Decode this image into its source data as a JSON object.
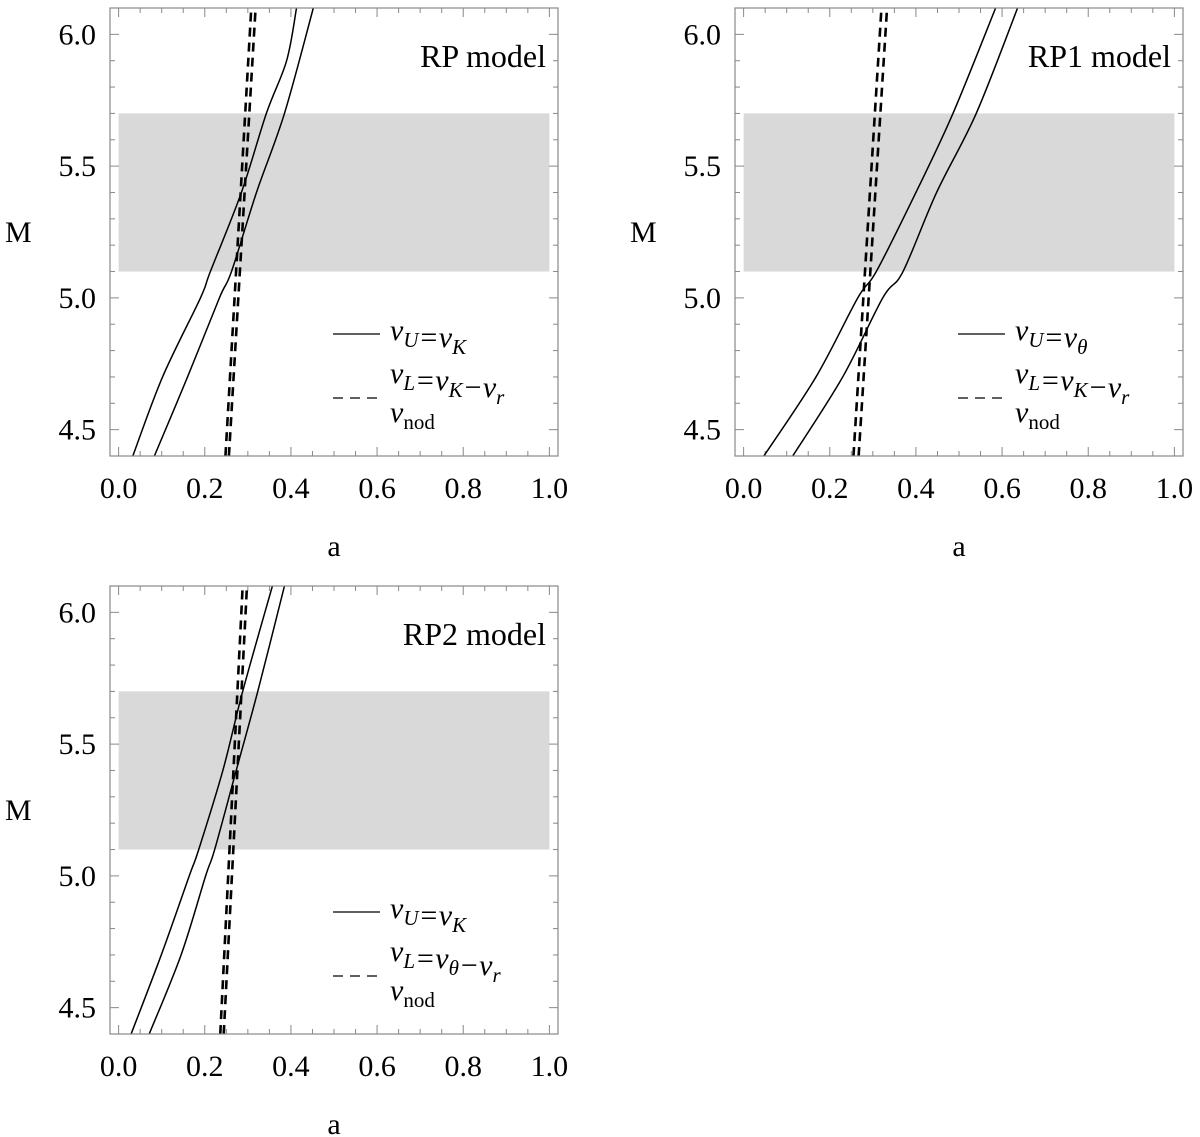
{
  "chart_data": [
    {
      "type": "line",
      "title": "RP model",
      "xlabel": "a",
      "ylabel": "M",
      "xlim": [
        -0.02,
        1.02
      ],
      "ylim": [
        4.4,
        6.1
      ],
      "xticks": [
        "0.0",
        "0.2",
        "0.4",
        "0.6",
        "0.8",
        "1.0"
      ],
      "yticks": [
        "4.5",
        "5.0",
        "5.5",
        "6.0"
      ],
      "band": {
        "x": [
          0,
          1
        ],
        "y": [
          5.1,
          5.7
        ],
        "color": "#d9d9d9"
      },
      "legend": [
        {
          "style": "solid",
          "label": [
            {
              "t": "ν"
            },
            {
              "t": "U",
              "sub": true
            },
            {
              "t": "=ν"
            },
            {
              "t": "K",
              "sub": true
            }
          ]
        },
        {
          "style": "none",
          "label": [
            {
              "t": "ν"
            },
            {
              "t": "L",
              "sub": true
            },
            {
              "t": "=ν"
            },
            {
              "t": "K",
              "sub": true
            },
            {
              "t": "−ν"
            },
            {
              "t": "r",
              "sub": true
            }
          ]
        },
        {
          "style": "dashed",
          "label": [
            {
              "t": "ν"
            },
            {
              "t": "nod",
              "sub": true,
              "upright": true
            }
          ]
        }
      ],
      "series": [
        {
          "style": "solid",
          "points": [
            [
              0.033,
              4.4
            ],
            [
              0.102,
              4.7
            ],
            [
              0.19,
              5.0
            ],
            [
              0.213,
              5.1
            ],
            [
              0.285,
              5.4
            ],
            [
              0.343,
              5.7
            ],
            [
              0.39,
              5.9
            ],
            [
              0.413,
              6.1
            ]
          ]
        },
        {
          "style": "solid",
          "points": [
            [
              0.083,
              4.4
            ],
            [
              0.16,
              4.7
            ],
            [
              0.234,
              5.0
            ],
            [
              0.262,
              5.1
            ],
            [
              0.32,
              5.4
            ],
            [
              0.385,
              5.7
            ],
            [
              0.452,
              6.1
            ]
          ]
        },
        {
          "style": "dashed",
          "points": [
            [
              0.248,
              4.4
            ],
            [
              0.308,
              6.1
            ]
          ]
        },
        {
          "style": "dashed",
          "points": [
            [
              0.256,
              4.4
            ],
            [
              0.318,
              6.1
            ]
          ]
        }
      ]
    },
    {
      "type": "line",
      "title": "RP1 model",
      "xlabel": "a",
      "ylabel": "M",
      "xlim": [
        -0.02,
        1.02
      ],
      "ylim": [
        4.4,
        6.1
      ],
      "xticks": [
        "0.0",
        "0.2",
        "0.4",
        "0.6",
        "0.8",
        "1.0"
      ],
      "yticks": [
        "4.5",
        "5.0",
        "5.5",
        "6.0"
      ],
      "band": {
        "x": [
          0,
          1
        ],
        "y": [
          5.1,
          5.7
        ],
        "color": "#d9d9d9"
      },
      "legend": [
        {
          "style": "solid",
          "label": [
            {
              "t": "ν"
            },
            {
              "t": "U",
              "sub": true
            },
            {
              "t": "=ν"
            },
            {
              "t": "θ",
              "sub": true
            }
          ]
        },
        {
          "style": "none",
          "label": [
            {
              "t": "ν"
            },
            {
              "t": "L",
              "sub": true
            },
            {
              "t": "=ν"
            },
            {
              "t": "K",
              "sub": true
            },
            {
              "t": "−ν"
            },
            {
              "t": "r",
              "sub": true
            }
          ]
        },
        {
          "style": "dashed",
          "label": [
            {
              "t": "ν"
            },
            {
              "t": "nod",
              "sub": true,
              "upright": true
            }
          ]
        }
      ],
      "series": [
        {
          "style": "solid",
          "points": [
            [
              0.047,
              4.4
            ],
            [
              0.168,
              4.7
            ],
            [
              0.265,
              5.0
            ],
            [
              0.308,
              5.1
            ],
            [
              0.4,
              5.4
            ],
            [
              0.486,
              5.7
            ],
            [
              0.585,
              6.1
            ]
          ]
        },
        {
          "style": "solid",
          "points": [
            [
              0.114,
              4.4
            ],
            [
              0.23,
              4.7
            ],
            [
              0.323,
              5.0
            ],
            [
              0.37,
              5.1
            ],
            [
              0.448,
              5.4
            ],
            [
              0.54,
              5.7
            ],
            [
              0.636,
              6.1
            ]
          ]
        },
        {
          "style": "dashed",
          "points": [
            [
              0.255,
              4.4
            ],
            [
              0.32,
              6.1
            ]
          ]
        },
        {
          "style": "dashed",
          "points": [
            [
              0.267,
              4.4
            ],
            [
              0.333,
              6.1
            ]
          ]
        }
      ]
    },
    {
      "type": "line",
      "title": "RP2 model",
      "xlabel": "a",
      "ylabel": "M",
      "xlim": [
        -0.02,
        1.02
      ],
      "ylim": [
        4.4,
        6.1
      ],
      "xticks": [
        "0.0",
        "0.2",
        "0.4",
        "0.6",
        "0.8",
        "1.0"
      ],
      "yticks": [
        "4.5",
        "5.0",
        "5.5",
        "6.0"
      ],
      "band": {
        "x": [
          0,
          1
        ],
        "y": [
          5.1,
          5.7
        ],
        "color": "#d9d9d9"
      },
      "legend": [
        {
          "style": "solid",
          "label": [
            {
              "t": "ν"
            },
            {
              "t": "U",
              "sub": true
            },
            {
              "t": "=ν"
            },
            {
              "t": "K",
              "sub": true
            }
          ]
        },
        {
          "style": "none",
          "label": [
            {
              "t": "ν"
            },
            {
              "t": "L",
              "sub": true
            },
            {
              "t": "=ν"
            },
            {
              "t": "θ",
              "sub": true
            },
            {
              "t": "−ν"
            },
            {
              "t": "r",
              "sub": true
            }
          ]
        },
        {
          "style": "dashed",
          "label": [
            {
              "t": "ν"
            },
            {
              "t": "nod",
              "sub": true,
              "upright": true
            }
          ]
        }
      ],
      "series": [
        {
          "style": "solid",
          "points": [
            [
              0.029,
              4.4
            ],
            [
              0.099,
              4.7
            ],
            [
              0.164,
              5.0
            ],
            [
              0.186,
              5.1
            ],
            [
              0.242,
              5.4
            ],
            [
              0.288,
              5.7
            ],
            [
              0.357,
              6.1
            ]
          ]
        },
        {
          "style": "solid",
          "points": [
            [
              0.071,
              4.4
            ],
            [
              0.145,
              4.7
            ],
            [
              0.202,
              5.0
            ],
            [
              0.223,
              5.1
            ],
            [
              0.273,
              5.4
            ],
            [
              0.323,
              5.7
            ],
            [
              0.385,
              6.1
            ]
          ]
        },
        {
          "style": "dashed",
          "points": [
            [
              0.236,
              4.4
            ],
            [
              0.288,
              6.1
            ]
          ]
        },
        {
          "style": "dashed",
          "points": [
            [
              0.244,
              4.4
            ],
            [
              0.298,
              6.1
            ]
          ]
        }
      ]
    }
  ]
}
